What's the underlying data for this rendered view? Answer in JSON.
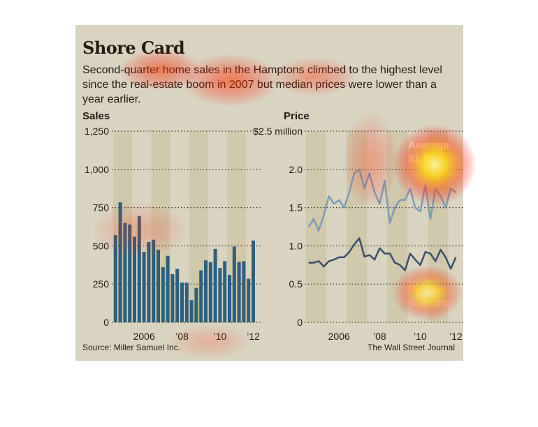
{
  "title": "Shore Card",
  "subtitle": "Second-quarter home sales in the Hamptons climbed to the highest level since the real-estate boom in 2007 but median prices were lower than a year earlier.",
  "source": "Source: Miller Samuel Inc.",
  "credit": "The Wall Street Journal",
  "colors": {
    "background": "#d9d4c0",
    "band": "#c9bd97",
    "bars": "#2e5f7c",
    "average_line": "#7f9cb6",
    "median_line": "#3b4e68"
  },
  "chart_data": [
    {
      "type": "bar",
      "ylabel": "Sales",
      "ylim": [
        0,
        1250
      ],
      "yticks": [
        "1,250",
        "1,000",
        "750",
        "500",
        "250",
        "0"
      ],
      "yticks_values": [
        1250,
        1000,
        750,
        500,
        250,
        0
      ],
      "xtick_labels": [
        "2006",
        "’08",
        "’10",
        "’12"
      ],
      "grid": "dotted horizontal",
      "values": [
        570,
        785,
        650,
        640,
        560,
        695,
        460,
        525,
        540,
        475,
        360,
        435,
        315,
        350,
        260,
        260,
        145,
        225,
        340,
        405,
        395,
        480,
        355,
        400,
        310,
        495,
        395,
        400,
        285,
        535
      ]
    },
    {
      "type": "line",
      "ylabel": "Price",
      "ylim": [
        0,
        2.5
      ],
      "yticks": [
        "$2.5 million",
        "2.0",
        "1.5",
        "1.0",
        "0.5",
        "0"
      ],
      "yticks_values": [
        2.5,
        2.0,
        1.5,
        1.0,
        0.5,
        0
      ],
      "xtick_labels": [
        "2006",
        "’08",
        "’10",
        "’12"
      ],
      "grid": "dotted horizontal",
      "annotations": [
        {
          "label": "Average",
          "value": "$1.7"
        },
        {
          "label": "Median",
          "value": "$850,000"
        }
      ],
      "series": [
        {
          "name": "Average",
          "values": [
            1.25,
            1.35,
            1.2,
            1.4,
            1.65,
            1.55,
            1.6,
            1.5,
            1.7,
            1.95,
            2.0,
            1.75,
            1.95,
            1.7,
            1.55,
            1.85,
            1.3,
            1.5,
            1.6,
            1.6,
            1.75,
            1.5,
            1.45,
            1.8,
            1.35,
            1.75,
            1.65,
            1.5,
            1.75,
            1.7
          ]
        },
        {
          "name": "Median",
          "values": [
            0.78,
            0.78,
            0.8,
            0.73,
            0.8,
            0.82,
            0.85,
            0.85,
            0.92,
            1.02,
            1.1,
            0.86,
            0.88,
            0.82,
            0.97,
            0.9,
            0.9,
            0.78,
            0.75,
            0.68,
            0.9,
            0.82,
            0.75,
            0.92,
            0.9,
            0.8,
            0.95,
            0.85,
            0.7,
            0.85
          ]
        }
      ]
    }
  ]
}
